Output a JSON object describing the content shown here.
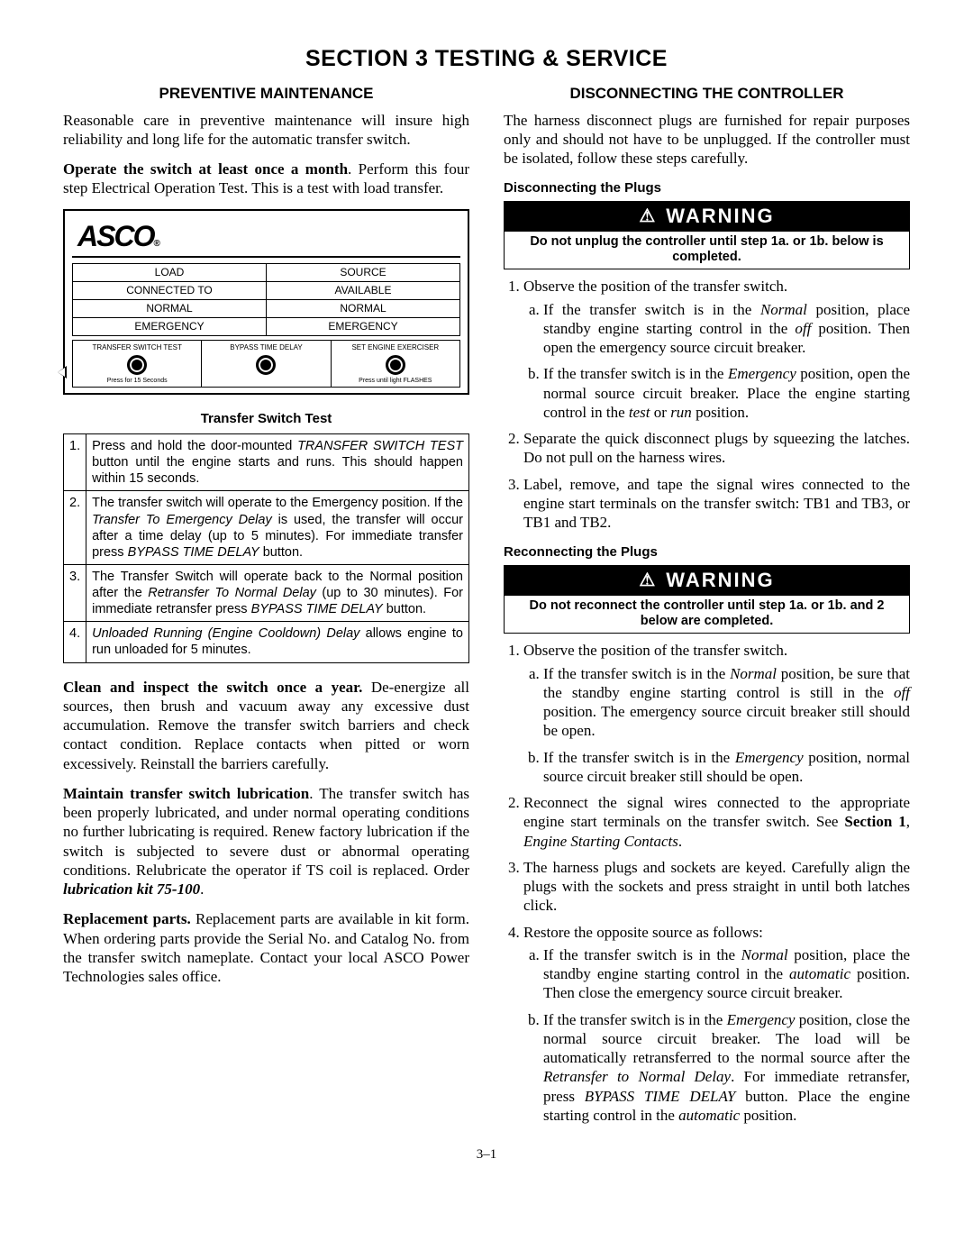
{
  "section_title": "SECTION 3   TESTING & SERVICE",
  "page_number": "3–1",
  "left": {
    "heading": "PREVENTIVE MAINTENANCE",
    "intro": "Reasonable care in preventive maintenance will insure high reliability and long life for the automatic transfer switch.",
    "operate_lead": "Operate the switch at least once a month",
    "operate_rest": ". Perform this four step Electrical Operation Test.  This is a test with load transfer.",
    "asco": {
      "logo": "ASCO",
      "load": {
        "h": "LOAD",
        "sub": "CONNECTED TO",
        "a": "NORMAL",
        "b": "EMERGENCY"
      },
      "source": {
        "h": "SOURCE",
        "sub": "AVAILABLE",
        "a": "NORMAL",
        "b": "EMERGENCY"
      },
      "btns": [
        {
          "label": "TRANSFER SWITCH TEST",
          "caption": "Press for 15 Seconds"
        },
        {
          "label": "BYPASS TIME DELAY",
          "caption": ""
        },
        {
          "label": "SET ENGINE EXERCISER",
          "caption": "Press until light FLASHES"
        }
      ]
    },
    "tst_heading": "Transfer Switch Test",
    "steps": [
      {
        "n": "1.",
        "html": "Press and hold the door-mounted <i>TRANSFER SWITCH TEST</i> button until the engine starts and runs. This should happen within 15 seconds."
      },
      {
        "n": "2.",
        "html": "The transfer switch will operate to the Emergency position.  If the <i>Transfer To Emergency Delay</i> is used, the transfer will occur after a time delay (up to 5 minutes). For immediate transfer press <i>BYPASS TIME DELAY</i> button."
      },
      {
        "n": "3.",
        "html": "The Transfer Switch will operate back to the Normal position after the <i>Retransfer To Normal Delay</i> (up to 30 minutes).  For immediate retransfer press <i>BYPASS TIME DELAY</i> button."
      },
      {
        "n": "4.",
        "html": "<i>Unloaded Running (Engine Cooldown) Delay</i> allows engine to run unloaded for 5 minutes."
      }
    ],
    "clean_lead": "Clean and inspect the switch once a year.",
    "clean_rest": " De-energize all sources, then brush and vacuum away any excessive dust accumulation.  Remove the transfer switch barriers and check contact condition.  Replace contacts when pitted or worn excessively.  Reinstall the barriers carefully.",
    "lube_lead": "Maintain transfer switch lubrication",
    "lube_rest": ".  The transfer switch has been properly lubricated, and under normal operating conditions no further lubricating is required. Renew factory lubrication if the switch is subjected to severe dust or abnormal operating conditions. Relubricate the operator if TS coil is replaced.  Order ",
    "lube_kit": "lubrication kit 75-100",
    "parts_lead": "Replacement parts.",
    "parts_rest": " Replacement parts are available in kit form. When ordering parts provide the Serial No. and Catalog No. from the transfer switch nameplate.  Contact your local ASCO Power Technologies sales office."
  },
  "right": {
    "heading": "DISCONNECTING THE CONTROLLER",
    "intro": "The harness disconnect plugs are furnished for repair purposes only and should not have to be unplugged.  If the controller must be isolated, follow these steps carefully.",
    "disc_sub": "Disconnecting the Plugs",
    "warn_label": "WARNING",
    "warn1": "Do not unplug the controller until step 1a. or 1b. below is completed.",
    "disc_list": {
      "i1": "Observe the position of the transfer switch.",
      "i1a_pre": "If the transfer switch is in the ",
      "i1a_em": "Normal",
      "i1a_mid": " position, place standby engine starting control in the ",
      "i1a_em2": "off",
      "i1a_post": " position. Then open the emergency source circuit breaker.",
      "i1b_pre": "If the transfer switch is in the ",
      "i1b_em": "Emergency",
      "i1b_mid": " position, open the normal source circuit breaker.  Place the engine starting control in the ",
      "i1b_em2": "test",
      "i1b_or": " or ",
      "i1b_em3": "run",
      "i1b_post": " position.",
      "i2": "Separate the quick disconnect plugs by squeezing the latches.  Do not pull on the harness wires.",
      "i3": "Label, remove, and tape the signal wires connected to the engine start terminals on the transfer switch: TB1 and TB3, or TB1 and TB2."
    },
    "recon_sub": "Reconnecting the Plugs",
    "warn2": "Do not reconnect the controller until step 1a. or 1b. and 2 below are completed.",
    "recon_list": {
      "i1": "Observe the position of the transfer switch.",
      "i1a_pre": "If the transfer switch is in the ",
      "i1a_em": "Normal",
      "i1a_mid": " position, be sure that the standby engine starting control is still in the ",
      "i1a_em2": "off",
      "i1a_post": " position.  The emergency source circuit breaker still should be open.",
      "i1b_pre": "If the transfer switch is in the ",
      "i1b_em": "Emergency",
      "i1b_post": " position, normal source circuit breaker still should be open.",
      "i2_pre": "Reconnect the signal wires connected to the appropriate engine start terminals on the transfer switch.  See ",
      "i2_b": "Section 1",
      "i2_mid": ", ",
      "i2_i": "Engine Starting Contacts",
      "i2_post": ".",
      "i3": "The harness plugs and sockets are keyed. Carefully align the plugs with the sockets and press straight in until both latches click.",
      "i4": "Restore the opposite source as follows:",
      "i4a_pre": "If the transfer switch is in the ",
      "i4a_em": "Normal",
      "i4a_mid": " position, place the standby engine starting control in the ",
      "i4a_em2": "automatic",
      "i4a_post": " position.  Then close the emergency source circuit breaker.",
      "i4b_pre": "If the transfer switch is in the ",
      "i4b_em": "Emergency",
      "i4b_mid": " position, close the normal source circuit breaker. The load will be automatically retransferred to the normal source after the ",
      "i4b_i": "Retransfer to Normal Delay",
      "i4b_mid2": ". For immediate retransfer, press ",
      "i4b_i2": "BYPASS TIME DELAY",
      "i4b_mid3": " button. Place the engine starting control in the ",
      "i4b_em2": "automatic",
      "i4b_post": " position."
    }
  }
}
